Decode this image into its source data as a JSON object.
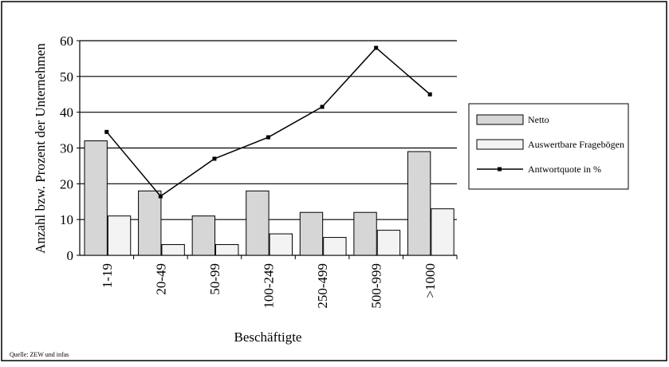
{
  "chart_data": {
    "type": "bar_line",
    "x_label": "Beschäftigte",
    "y_label": "Anzahl bzw. Prozent der Unternehmen",
    "source": "Quelle: ZEW und infas",
    "categories": [
      "1-19",
      "20-49",
      "50-99",
      "100-249",
      "250-499",
      "500-999",
      ">1000"
    ],
    "series": [
      {
        "name": "Netto",
        "type": "bar",
        "color": "#d6d6d6",
        "values": [
          32,
          18,
          11,
          18,
          12,
          12,
          29
        ]
      },
      {
        "name": "Auswertbare Fragebögen",
        "type": "bar",
        "color": "#f3f3f3",
        "values": [
          11,
          3,
          3,
          6,
          5,
          7,
          13
        ]
      },
      {
        "name": "Antwortquote in %",
        "type": "line",
        "color": "#000000",
        "values": [
          34.5,
          16.5,
          27,
          33,
          41.5,
          58,
          45
        ]
      }
    ],
    "ylim": [
      0,
      60
    ],
    "yticks": [
      0,
      10,
      20,
      30,
      40,
      50,
      60
    ],
    "grid": true,
    "legend": "right"
  }
}
